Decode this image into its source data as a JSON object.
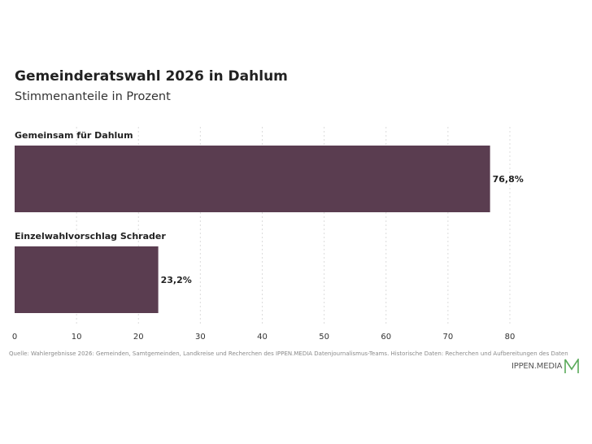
{
  "title": "Gemeinderatswahl 2026 in Dahlum",
  "subtitle": "Stimmenanteile in Prozent",
  "source": "Quelle: Wahlergebnisse 2026: Gemeinden, Samtgemeinden, Landkreise und Recherchen des IPPEN.MEDIA Datenjournalismus-Teams. Historische Daten: Recherchen und Aufbereitungen des Daten",
  "brand": {
    "name": "IPPEN.MEDIA",
    "logo_icon": "ippen-media-m-logo",
    "logo_color": "#5aaa5a"
  },
  "chart_data": {
    "type": "bar",
    "orientation": "horizontal",
    "categories": [
      "Gemeinsam für Dahlum",
      "Einzelwahlvorschlag Schrader"
    ],
    "values": [
      76.8,
      23.2
    ],
    "value_labels": [
      "76,8%",
      "23,2%"
    ],
    "xlim": [
      0,
      80
    ],
    "x_ticks": [
      "0",
      "10",
      "20",
      "30",
      "40",
      "50",
      "60",
      "70",
      "80"
    ],
    "bar_color": "#5a3d50",
    "grid": "vertical dotted",
    "legend": "none"
  }
}
